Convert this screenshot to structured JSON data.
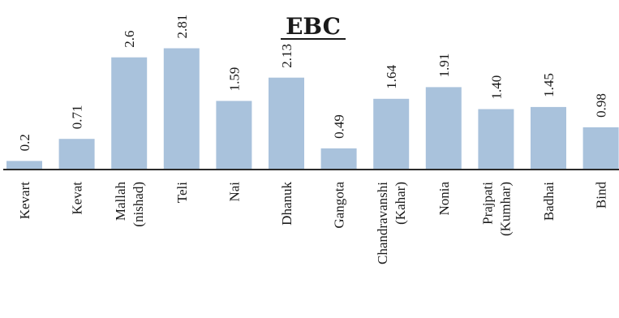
{
  "chart_data": {
    "type": "bar",
    "title": "EBC",
    "xlabel": "",
    "ylabel": "",
    "ylim": [
      0,
      3
    ],
    "grid": false,
    "legend": "none",
    "bar_color": "#a9c2dc",
    "axis_color": "#2b2b2b",
    "categories": [
      [
        "Kevart"
      ],
      [
        "Kevat"
      ],
      [
        "Mallah",
        "(nishad)"
      ],
      [
        "Teli"
      ],
      [
        "Nai"
      ],
      [
        "Dhanuk"
      ],
      [
        "Gangota"
      ],
      [
        "Chandravanshi",
        "(Kahar)"
      ],
      [
        "Nonia"
      ],
      [
        "Prajpati",
        "(Kumhar)"
      ],
      [
        "Badhai"
      ],
      [
        "Bind"
      ]
    ],
    "values": [
      0.2,
      0.71,
      2.6,
      2.81,
      1.59,
      2.13,
      0.49,
      1.64,
      1.91,
      1.4,
      1.45,
      0.98
    ],
    "value_labels": [
      "0.2",
      "0.71",
      "2.6",
      "2.81",
      "1.59",
      "2.13",
      "0.49",
      "1.64",
      "1.91",
      "1.40",
      "1.45",
      "0.98"
    ]
  }
}
